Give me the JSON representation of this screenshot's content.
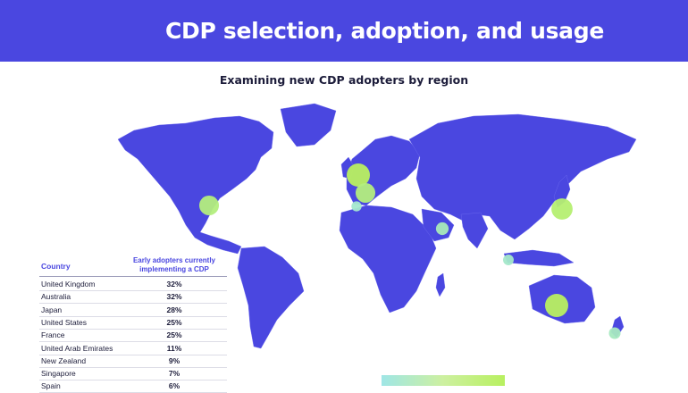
{
  "banner": {
    "title": "CDP selection, adoption, and usage"
  },
  "chart_data": {
    "type": "bubble-map",
    "title": "Examining new CDP adopters by region",
    "table_headers": {
      "country": "Country",
      "value": "Early adopters currently implementing a CDP"
    },
    "rows": [
      {
        "country": "United Kingdom",
        "value": 32,
        "label": "32%"
      },
      {
        "country": "Australia",
        "value": 32,
        "label": "32%"
      },
      {
        "country": "Japan",
        "value": 28,
        "label": "28%"
      },
      {
        "country": "United States",
        "value": 25,
        "label": "25%"
      },
      {
        "country": "France",
        "value": 25,
        "label": "25%"
      },
      {
        "country": "United Arab Emirates",
        "value": 11,
        "label": "11%"
      },
      {
        "country": "New Zealand",
        "value": 9,
        "label": "9%"
      },
      {
        "country": "Singapore",
        "value": 7,
        "label": "7%"
      },
      {
        "country": "Spain",
        "value": 6,
        "label": "6%"
      }
    ],
    "colors": {
      "land": "#4a47e0",
      "ocean": "#ffffff",
      "high": "#b8f060",
      "low": "#9fe6e6"
    }
  }
}
